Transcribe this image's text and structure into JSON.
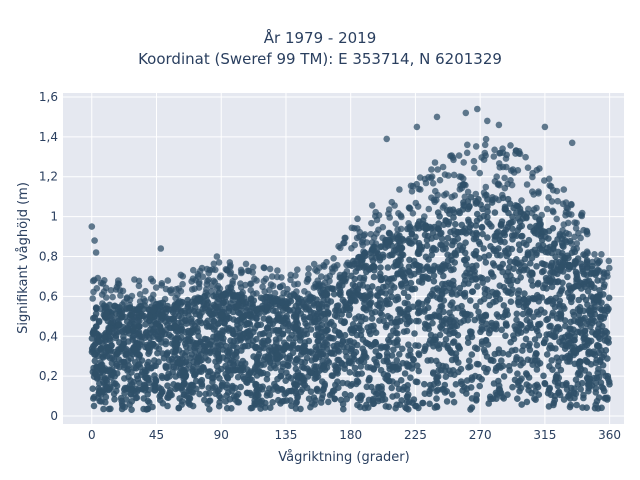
{
  "chart_data": {
    "type": "scatter",
    "title": "År 1979 - 2019",
    "subtitle": "Koordinat (Sweref 99 TM): E 353714, N 6201329",
    "xlabel": "Vågriktning (grader)",
    "ylabel": "Signifikant våghöjd (m)",
    "xlim": [
      -20,
      370
    ],
    "ylim": [
      -0.04,
      1.62
    ],
    "xticks": [
      0,
      45,
      90,
      135,
      180,
      225,
      270,
      315,
      360
    ],
    "xtick_labels": [
      "0",
      "45",
      "90",
      "135",
      "180",
      "225",
      "270",
      "315",
      "360"
    ],
    "yticks": [
      0,
      0.2,
      0.4,
      0.6,
      0.8,
      1.0,
      1.2,
      1.4,
      1.6
    ],
    "ytick_labels": [
      "0",
      "0,2",
      "0,4",
      "0,6",
      "0,8",
      "1",
      "1,2",
      "1,4",
      "1,6"
    ],
    "grid": true,
    "marker_color": "#2f5069",
    "plot_background": "#e5e8f0",
    "upper_envelope": [
      {
        "x": 0,
        "y": 0.6
      },
      {
        "x": 20,
        "y": 0.58
      },
      {
        "x": 45,
        "y": 0.6
      },
      {
        "x": 60,
        "y": 0.6
      },
      {
        "x": 90,
        "y": 0.66
      },
      {
        "x": 110,
        "y": 0.64
      },
      {
        "x": 135,
        "y": 0.62
      },
      {
        "x": 150,
        "y": 0.63
      },
      {
        "x": 165,
        "y": 0.68
      },
      {
        "x": 180,
        "y": 0.8
      },
      {
        "x": 200,
        "y": 0.9
      },
      {
        "x": 225,
        "y": 1.0
      },
      {
        "x": 250,
        "y": 1.08
      },
      {
        "x": 270,
        "y": 1.15
      },
      {
        "x": 290,
        "y": 1.12
      },
      {
        "x": 315,
        "y": 1.0
      },
      {
        "x": 340,
        "y": 0.88
      },
      {
        "x": 360,
        "y": 0.65
      }
    ],
    "highlighted_points": [
      {
        "x": 0,
        "y": 0.95
      },
      {
        "x": 2,
        "y": 0.88
      },
      {
        "x": 3,
        "y": 0.82
      },
      {
        "x": 48,
        "y": 0.84
      },
      {
        "x": 87,
        "y": 0.8
      },
      {
        "x": 240,
        "y": 1.5
      },
      {
        "x": 260,
        "y": 1.52
      },
      {
        "x": 268,
        "y": 1.54
      },
      {
        "x": 275,
        "y": 1.48
      },
      {
        "x": 283,
        "y": 1.46
      },
      {
        "x": 315,
        "y": 1.45
      },
      {
        "x": 334,
        "y": 1.37
      },
      {
        "x": 205,
        "y": 1.39
      },
      {
        "x": 226,
        "y": 1.45
      }
    ]
  }
}
